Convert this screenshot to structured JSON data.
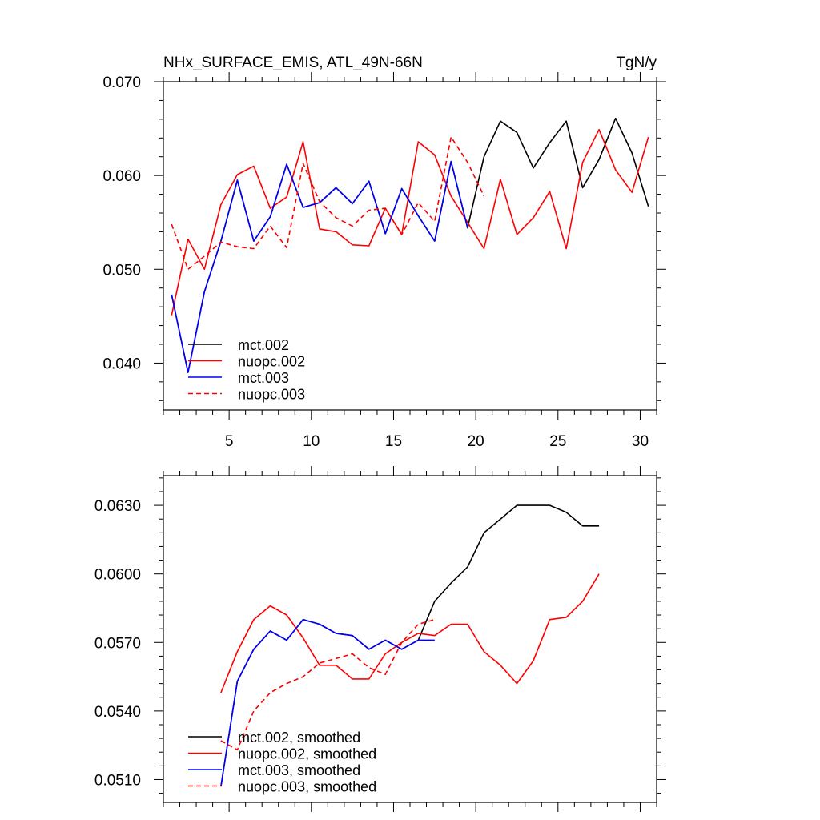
{
  "chart_data": [
    {
      "type": "line",
      "title": "NHx_SURFACE_EMIS, ATL_49N-66N",
      "units": "TgN/y",
      "xlim": [
        1,
        31
      ],
      "ylim": [
        0.035,
        0.07
      ],
      "xticks": [
        5,
        10,
        15,
        20,
        25,
        30
      ],
      "xtick_labels": [
        "5",
        "10",
        "15",
        "20",
        "25",
        "30"
      ],
      "yticks": [
        0.04,
        0.05,
        0.06,
        0.07
      ],
      "ytick_labels": [
        "0.040",
        "0.050",
        "0.060",
        "0.070"
      ],
      "legend_position": "bottom-left",
      "series": [
        {
          "name": "mct.002",
          "color": "#000000",
          "dash": "solid",
          "x": [
            1.5,
            2.5,
            3.5,
            4.5,
            5.5,
            6.5,
            7.5,
            8.5,
            9.5,
            10.5,
            11.5,
            12.5,
            13.5,
            14.5,
            15.5,
            16.5,
            17.5,
            18.5,
            19.5,
            20.5,
            21.5,
            22.5,
            23.5,
            24.5,
            25.5,
            26.5,
            27.5,
            28.5,
            29.5,
            30.5
          ],
          "values": [
            0.0473,
            0.039,
            0.0476,
            0.053,
            0.0595,
            0.053,
            0.0556,
            0.0612,
            0.0566,
            0.0571,
            0.0587,
            0.057,
            0.0594,
            0.0538,
            0.0586,
            0.0557,
            0.053,
            0.0615,
            0.0544,
            0.062,
            0.0658,
            0.0646,
            0.0608,
            0.0635,
            0.0658,
            0.0587,
            0.0617,
            0.0661,
            0.0624,
            0.0567
          ]
        },
        {
          "name": "nuopc.002",
          "color": "#ff0000",
          "dash": "solid",
          "x": [
            1.5,
            2.5,
            3.5,
            4.5,
            5.5,
            6.5,
            7.5,
            8.5,
            9.5,
            10.5,
            11.5,
            12.5,
            13.5,
            14.5,
            15.5,
            16.5,
            17.5,
            18.5,
            19.5,
            20.5,
            21.5,
            22.5,
            23.5,
            24.5,
            25.5,
            26.5,
            27.5,
            28.5,
            29.5,
            30.5
          ],
          "values": [
            0.0451,
            0.0532,
            0.05,
            0.0569,
            0.0601,
            0.061,
            0.0565,
            0.0577,
            0.0636,
            0.0543,
            0.054,
            0.0526,
            0.0525,
            0.0565,
            0.0537,
            0.0636,
            0.0622,
            0.0578,
            0.055,
            0.0522,
            0.0596,
            0.0537,
            0.0555,
            0.0583,
            0.0522,
            0.0614,
            0.0649,
            0.0606,
            0.0582,
            0.0641
          ]
        },
        {
          "name": "mct.003",
          "color": "#0000ff",
          "dash": "solid",
          "x": [
            1.5,
            2.5,
            3.5,
            4.5,
            5.5,
            6.5,
            7.5,
            8.5,
            9.5,
            10.5,
            11.5,
            12.5,
            13.5,
            14.5,
            15.5,
            16.5,
            17.5,
            18.5,
            19.5
          ],
          "values": [
            0.0473,
            0.039,
            0.0476,
            0.053,
            0.0595,
            0.053,
            0.0556,
            0.0612,
            0.0566,
            0.0571,
            0.0587,
            0.057,
            0.0594,
            0.0538,
            0.0586,
            0.0557,
            0.053,
            0.0615,
            0.0544
          ]
        },
        {
          "name": "nuopc.003",
          "color": "#ff0000",
          "dash": "dashed",
          "x": [
            1.5,
            2.5,
            3.5,
            4.5,
            5.5,
            6.5,
            7.5,
            8.5,
            9.5,
            10.5,
            11.5,
            12.5,
            13.5,
            14.5,
            15.5,
            16.5,
            17.5,
            18.5,
            19.5,
            20.5
          ],
          "values": [
            0.0548,
            0.05,
            0.0514,
            0.0529,
            0.0524,
            0.0522,
            0.0546,
            0.0523,
            0.0613,
            0.0572,
            0.0555,
            0.0546,
            0.0563,
            0.0565,
            0.0537,
            0.0571,
            0.0551,
            0.0641,
            0.0614,
            0.0578
          ]
        }
      ]
    },
    {
      "type": "line",
      "title": "",
      "xlim": [
        1,
        31
      ],
      "ylim": [
        0.05,
        0.0643
      ],
      "xticks": [
        5,
        10,
        15,
        20,
        25,
        30
      ],
      "xtick_labels": [
        "",
        "",
        "",
        "",
        "",
        ""
      ],
      "yticks": [
        0.051,
        0.054,
        0.057,
        0.06,
        0.063
      ],
      "ytick_labels": [
        "0.0510",
        "0.0540",
        "0.0570",
        "0.0600",
        "0.0630"
      ],
      "legend_position": "bottom-left",
      "series": [
        {
          "name": "mct.002, smoothed",
          "color": "#000000",
          "dash": "solid",
          "x": [
            4.5,
            5.5,
            6.5,
            7.5,
            8.5,
            9.5,
            10.5,
            11.5,
            12.5,
            13.5,
            14.5,
            15.5,
            16.5,
            17.5,
            18.5,
            19.5,
            20.5,
            21.5,
            22.5,
            23.5,
            24.5,
            25.5,
            26.5,
            27.5
          ],
          "values": [
            0.0507,
            0.0553,
            0.0567,
            0.0575,
            0.0571,
            0.058,
            0.0578,
            0.0574,
            0.0573,
            0.0567,
            0.0571,
            0.0567,
            0.0571,
            0.0588,
            0.0596,
            0.0603,
            0.0618,
            0.0624,
            0.063,
            0.063,
            0.063,
            0.0627,
            0.0621,
            0.0621
          ]
        },
        {
          "name": "nuopc.002, smoothed",
          "color": "#ff0000",
          "dash": "solid",
          "x": [
            4.5,
            5.5,
            6.5,
            7.5,
            8.5,
            9.5,
            10.5,
            11.5,
            12.5,
            13.5,
            14.5,
            15.5,
            16.5,
            17.5,
            18.5,
            19.5,
            20.5,
            21.5,
            22.5,
            23.5,
            24.5,
            25.5,
            26.5,
            27.5
          ],
          "values": [
            0.0548,
            0.0566,
            0.058,
            0.0586,
            0.0582,
            0.0572,
            0.056,
            0.056,
            0.0554,
            0.0554,
            0.0565,
            0.057,
            0.0574,
            0.0573,
            0.0578,
            0.0578,
            0.0566,
            0.056,
            0.0552,
            0.0562,
            0.058,
            0.0581,
            0.0588,
            0.06
          ]
        },
        {
          "name": "mct.003, smoothed",
          "color": "#0000ff",
          "dash": "solid",
          "x": [
            4.5,
            5.5,
            6.5,
            7.5,
            8.5,
            9.5,
            10.5,
            11.5,
            12.5,
            13.5,
            14.5,
            15.5,
            16.5,
            17.5
          ],
          "values": [
            0.0507,
            0.0553,
            0.0567,
            0.0575,
            0.0571,
            0.058,
            0.0578,
            0.0574,
            0.0573,
            0.0567,
            0.0571,
            0.0567,
            0.0571,
            0.0571
          ]
        },
        {
          "name": "nuopc.003, smoothed",
          "color": "#ff0000",
          "dash": "dashed",
          "x": [
            4.5,
            5.5,
            6.5,
            7.5,
            8.5,
            9.5,
            10.5,
            11.5,
            12.5,
            13.5,
            14.5,
            15.5,
            16.5,
            17.5
          ],
          "values": [
            0.0527,
            0.0523,
            0.054,
            0.0548,
            0.0552,
            0.0555,
            0.0561,
            0.0563,
            0.0565,
            0.0559,
            0.0556,
            0.057,
            0.0578,
            0.058
          ]
        }
      ]
    }
  ]
}
